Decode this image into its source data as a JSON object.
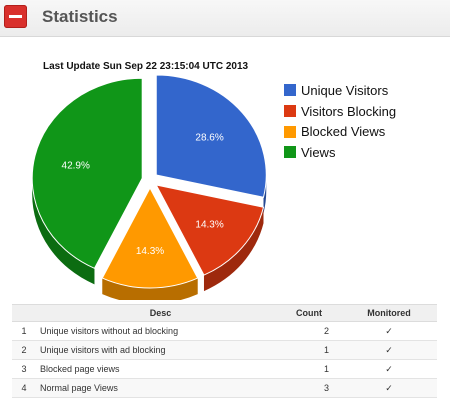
{
  "header": {
    "title": "Statistics",
    "collapse_icon": "minus-icon"
  },
  "last_update": "Last Update Sun Sep 22 23:15:04 UTC 2013",
  "chart_data": {
    "type": "pie",
    "title": "",
    "slices": [
      {
        "label": "Unique Visitors",
        "value": 28.6,
        "display": "28.6%",
        "color": "#3366cc"
      },
      {
        "label": "Visitors Blocking",
        "value": 14.3,
        "display": "14.3%",
        "color": "#dc3912"
      },
      {
        "label": "Blocked Views",
        "value": 14.3,
        "display": "14.3%",
        "color": "#ff9900"
      },
      {
        "label": "Views",
        "value": 42.9,
        "display": "42.9%",
        "color": "#109618"
      }
    ],
    "legend_position": "right",
    "style": "3d-exploded"
  },
  "table": {
    "headers": {
      "index": "",
      "desc": "Desc",
      "count": "Count",
      "monitored": "Monitored"
    },
    "rows": [
      {
        "index": "1",
        "desc": "Unique visitors without ad blocking",
        "count": "2",
        "monitored": "✓"
      },
      {
        "index": "2",
        "desc": "Unique visitors with ad blocking",
        "count": "1",
        "monitored": "✓"
      },
      {
        "index": "3",
        "desc": "Blocked page views",
        "count": "1",
        "monitored": "✓"
      },
      {
        "index": "4",
        "desc": "Normal page Views",
        "count": "3",
        "monitored": "✓"
      }
    ]
  }
}
